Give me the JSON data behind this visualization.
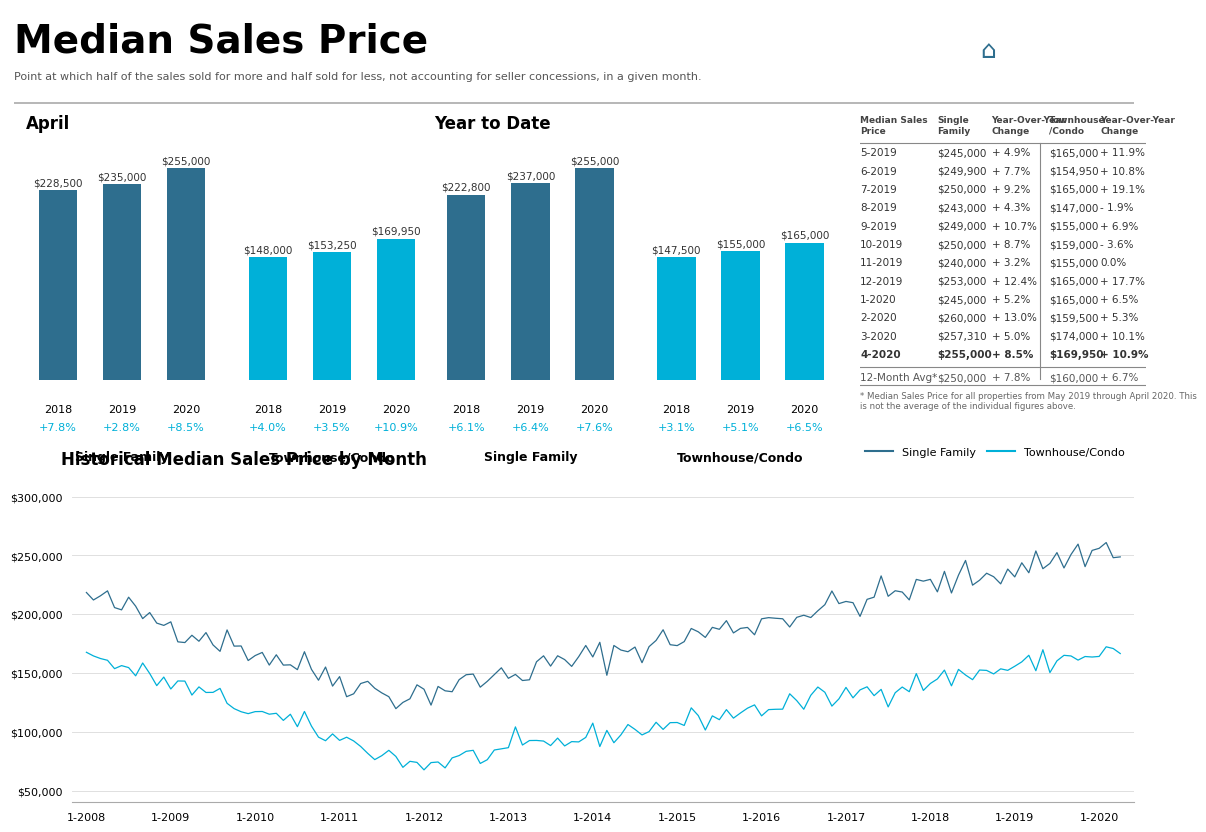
{
  "title": "Median Sales Price",
  "subtitle": "Point at which half of the sales sold for more and half sold for less, not accounting for seller concessions, in a given month.",
  "section_april": "April",
  "section_ytd": "Year to Date",
  "april_sf_values": [
    228500,
    235000,
    255000
  ],
  "april_sf_years": [
    "2018",
    "2019",
    "2020"
  ],
  "april_sf_changes": [
    "+7.8%",
    "+2.8%",
    "+8.5%"
  ],
  "april_tc_values": [
    148000,
    153250,
    169950
  ],
  "april_tc_years": [
    "2018",
    "2019",
    "2020"
  ],
  "april_tc_changes": [
    "+4.0%",
    "+3.5%",
    "+10.9%"
  ],
  "ytd_sf_values": [
    222800,
    237000,
    255000
  ],
  "ytd_sf_years": [
    "2018",
    "2019",
    "2020"
  ],
  "ytd_sf_changes": [
    "+6.1%",
    "+6.4%",
    "+7.6%"
  ],
  "ytd_tc_values": [
    147500,
    155000,
    165000
  ],
  "ytd_tc_years": [
    "2018",
    "2019",
    "2020"
  ],
  "ytd_tc_changes": [
    "+3.1%",
    "+5.1%",
    "+6.5%"
  ],
  "sf_color": "#2e6e8e",
  "tc_color": "#00b0d8",
  "table_rows": [
    [
      "5-2019",
      "$245,000",
      "+ 4.9%",
      "$165,000",
      "+ 11.9%"
    ],
    [
      "6-2019",
      "$249,900",
      "+ 7.7%",
      "$154,950",
      "+ 10.8%"
    ],
    [
      "7-2019",
      "$250,000",
      "+ 9.2%",
      "$165,000",
      "+ 19.1%"
    ],
    [
      "8-2019",
      "$243,000",
      "+ 4.3%",
      "$147,000",
      "- 1.9%"
    ],
    [
      "9-2019",
      "$249,000",
      "+ 10.7%",
      "$155,000",
      "+ 6.9%"
    ],
    [
      "10-2019",
      "$250,000",
      "+ 8.7%",
      "$159,000",
      "- 3.6%"
    ],
    [
      "11-2019",
      "$240,000",
      "+ 3.2%",
      "$155,000",
      "0.0%"
    ],
    [
      "12-2019",
      "$253,000",
      "+ 12.4%",
      "$165,000",
      "+ 17.7%"
    ],
    [
      "1-2020",
      "$245,000",
      "+ 5.2%",
      "$165,000",
      "+ 6.5%"
    ],
    [
      "2-2020",
      "$260,000",
      "+ 13.0%",
      "$159,500",
      "+ 5.3%"
    ],
    [
      "3-2020",
      "$257,310",
      "+ 5.0%",
      "$174,000",
      "+ 10.1%"
    ],
    [
      "4-2020",
      "$255,000",
      "+ 8.5%",
      "$169,950",
      "+ 10.9%"
    ]
  ],
  "table_avg_row": [
    "12-Month Avg*",
    "$250,000",
    "+ 7.8%",
    "$160,000",
    "+ 6.7%"
  ],
  "table_footnote": "* Median Sales Price for all properties from May 2019 through April 2020. This\nis not the average of the individual figures above.",
  "hist_sf_label": "Single Family",
  "hist_tc_label": "Townhouse/Condo",
  "sf_xlabel": "Single Family",
  "tc_xlabel": "Townhouse/Condo",
  "background_color": "#ffffff",
  "bar_ylim": [
    0,
    285000
  ],
  "change_label_color": "#00b0d8"
}
